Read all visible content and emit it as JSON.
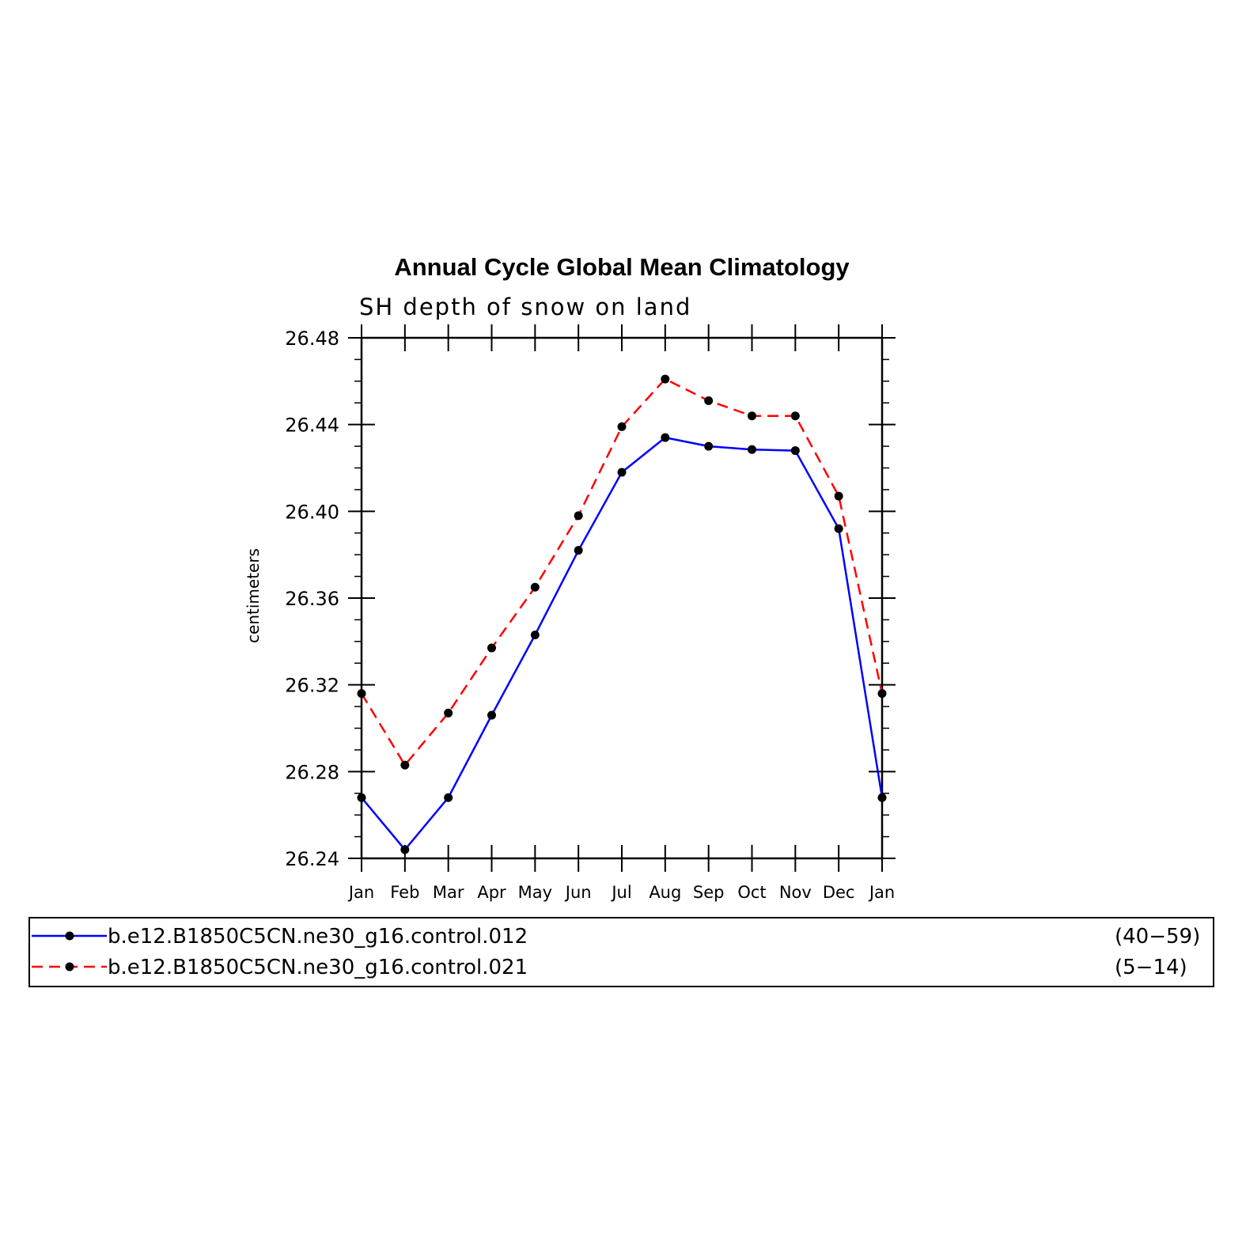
{
  "chart_data": {
    "type": "line",
    "title": "Annual Cycle Global Mean Climatology",
    "subtitle": "SH depth of snow on land",
    "ylabel": "centimeters",
    "xlabel": "",
    "categories": [
      "Jan",
      "Feb",
      "Mar",
      "Apr",
      "May",
      "Jun",
      "Jul",
      "Aug",
      "Sep",
      "Oct",
      "Nov",
      "Dec",
      "Jan"
    ],
    "ylim": [
      26.24,
      26.48
    ],
    "yticks": [
      "26.24",
      "26.28",
      "26.32",
      "26.36",
      "26.40",
      "26.44",
      "26.48"
    ],
    "grid": false,
    "legend_position": "bottom",
    "series": [
      {
        "name": "b.e12.B1850C5CN.ne30_g16.control.012",
        "years": "(40−59)",
        "color": "#0000ff",
        "dash": "solid",
        "values": [
          26.268,
          26.244,
          26.268,
          26.306,
          26.343,
          26.382,
          26.418,
          26.434,
          26.43,
          26.4285,
          26.428,
          26.392,
          26.268
        ]
      },
      {
        "name": "b.e12.B1850C5CN.ne30_g16.control.021",
        "years": "(5−14)",
        "color": "#ff0000",
        "dash": "dashed",
        "values": [
          26.316,
          26.283,
          26.307,
          26.337,
          26.365,
          26.398,
          26.439,
          26.461,
          26.451,
          26.444,
          26.444,
          26.407,
          26.316
        ]
      }
    ]
  }
}
